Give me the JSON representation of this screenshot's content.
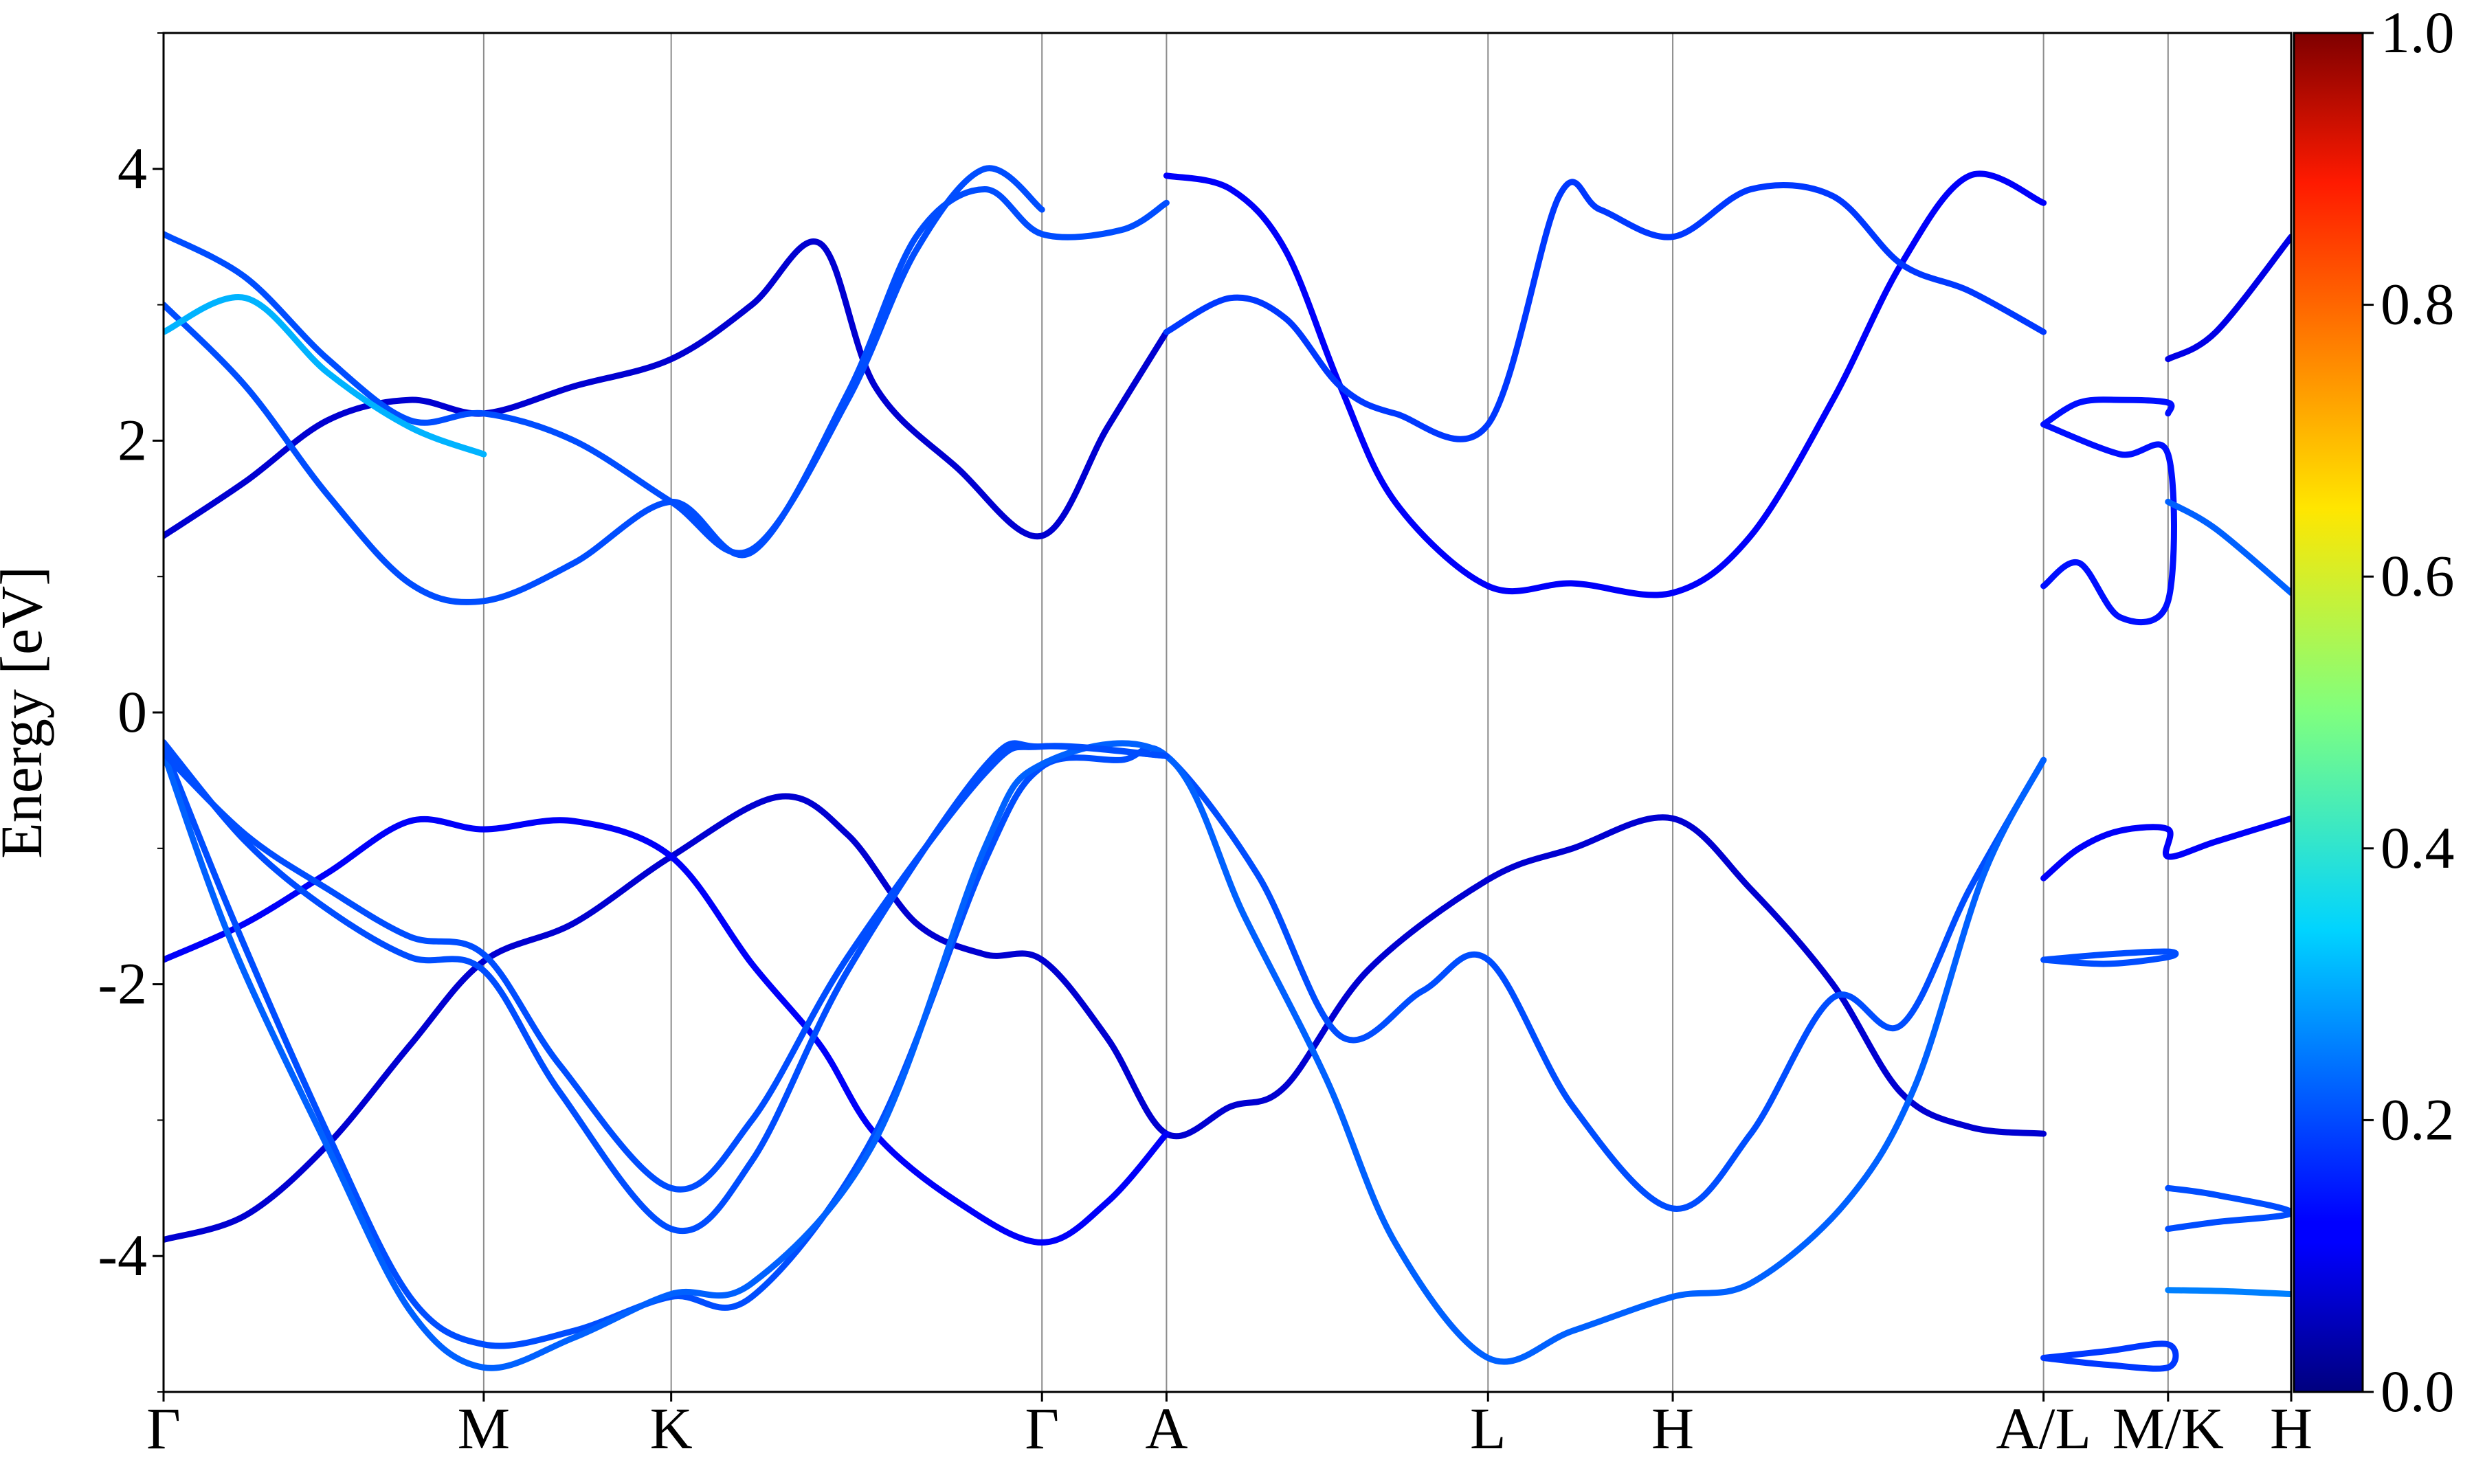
{
  "chart_data": {
    "type": "line",
    "title": "",
    "xlabel": "",
    "ylabel": "Energy [eV]",
    "ylim": [
      -5,
      5
    ],
    "xlim": [
      0,
      15.55
    ],
    "y_ticks": [
      {
        "value": -4,
        "label": "-4"
      },
      {
        "value": -2,
        "label": "-2"
      },
      {
        "value": 0,
        "label": "0"
      },
      {
        "value": 2,
        "label": "2"
      },
      {
        "value": 4,
        "label": "4"
      }
    ],
    "y_minor_ticks": [
      -5,
      -3,
      -1,
      1,
      3,
      5
    ],
    "k_points": [
      {
        "label": "Γ",
        "x": 0.0
      },
      {
        "label": "M",
        "x": 2.34
      },
      {
        "label": "K",
        "x": 3.71
      },
      {
        "label": "Γ",
        "x": 6.42
      },
      {
        "label": "A",
        "x": 7.33
      },
      {
        "label": "L",
        "x": 9.68
      },
      {
        "label": "H",
        "x": 11.03
      },
      {
        "label": "A/L",
        "x": 13.74
      },
      {
        "label": "M/K",
        "x": 14.65
      },
      {
        "label": "H",
        "x": 15.55
      }
    ],
    "colorbar": {
      "colormap": "jet",
      "range": [
        0.0,
        1.0
      ],
      "ticks": [
        {
          "value": 0.0,
          "label": "0.0"
        },
        {
          "value": 0.2,
          "label": "0.2"
        },
        {
          "value": 0.4,
          "label": "0.4"
        },
        {
          "value": 0.6,
          "label": "0.6"
        },
        {
          "value": 0.8,
          "label": "0.8"
        },
        {
          "value": 1.0,
          "label": "1.0"
        }
      ]
    },
    "grid": "vertical lines at high-symmetry k-points",
    "bands": [
      {
        "weight": 0.08,
        "points": [
          [
            0,
            -3.88
          ],
          [
            0.6,
            -3.7
          ],
          [
            1.2,
            -3.18
          ],
          [
            1.8,
            -2.45
          ],
          [
            2.34,
            -1.83
          ],
          [
            3.0,
            -1.55
          ],
          [
            3.71,
            -1.06
          ],
          [
            4.5,
            -0.62
          ],
          [
            5.0,
            -0.9
          ],
          [
            5.5,
            -1.55
          ],
          [
            6.0,
            -1.78
          ],
          [
            6.42,
            -1.82
          ],
          [
            6.9,
            -2.4
          ],
          [
            7.33,
            -3.1
          ],
          [
            7.8,
            -2.9
          ],
          [
            8.2,
            -2.75
          ],
          [
            8.8,
            -1.9
          ],
          [
            9.68,
            -1.23
          ],
          [
            10.3,
            -1.0
          ],
          [
            11.03,
            -0.78
          ],
          [
            11.6,
            -1.3
          ],
          [
            12.2,
            -2.0
          ],
          [
            12.7,
            -2.8
          ],
          [
            13.2,
            -3.05
          ],
          [
            13.74,
            -3.1
          ]
        ]
      },
      {
        "weight": 0.12,
        "points": [
          [
            0,
            -1.82
          ],
          [
            0.6,
            -1.55
          ],
          [
            1.2,
            -1.18
          ],
          [
            1.8,
            -0.8
          ],
          [
            2.34,
            -0.86
          ],
          [
            3.0,
            -0.8
          ],
          [
            3.71,
            -1.06
          ],
          [
            4.3,
            -1.85
          ],
          [
            4.8,
            -2.45
          ],
          [
            5.2,
            -3.1
          ],
          [
            5.8,
            -3.6
          ],
          [
            6.42,
            -3.9
          ],
          [
            6.9,
            -3.6
          ],
          [
            7.33,
            -3.1
          ]
        ]
      },
      {
        "weight": 0.2,
        "points": [
          [
            0,
            -0.25
          ],
          [
            0.5,
            -1.5
          ],
          [
            1.2,
            -3.1
          ],
          [
            1.8,
            -4.3
          ],
          [
            2.34,
            -4.65
          ],
          [
            3.0,
            -4.55
          ],
          [
            3.71,
            -4.3
          ],
          [
            4.3,
            -4.3
          ],
          [
            5.2,
            -3.1
          ],
          [
            6.0,
            -1.1
          ],
          [
            6.42,
            -0.4
          ],
          [
            7.0,
            -0.35
          ],
          [
            7.33,
            -0.32
          ],
          [
            8.0,
            -1.2
          ],
          [
            8.6,
            -2.38
          ],
          [
            9.2,
            -2.05
          ],
          [
            9.68,
            -1.82
          ],
          [
            10.3,
            -2.9
          ],
          [
            11.03,
            -3.65
          ],
          [
            11.6,
            -3.1
          ],
          [
            12.2,
            -2.1
          ],
          [
            12.7,
            -2.3
          ],
          [
            13.2,
            -1.3
          ],
          [
            13.74,
            -0.35
          ]
        ]
      },
      {
        "weight": 0.22,
        "points": [
          [
            0,
            -0.3
          ],
          [
            0.5,
            -1.7
          ],
          [
            1.2,
            -3.2
          ],
          [
            1.8,
            -4.4
          ],
          [
            2.34,
            -4.82
          ],
          [
            3.0,
            -4.6
          ],
          [
            3.71,
            -4.28
          ],
          [
            4.3,
            -4.2
          ],
          [
            5.2,
            -3.15
          ],
          [
            6.0,
            -1.0
          ],
          [
            6.42,
            -0.38
          ],
          [
            7.33,
            -0.32
          ],
          [
            7.9,
            -1.5
          ],
          [
            8.5,
            -2.7
          ],
          [
            9.0,
            -3.9
          ],
          [
            9.68,
            -4.75
          ],
          [
            10.3,
            -4.55
          ],
          [
            11.03,
            -4.3
          ],
          [
            11.6,
            -4.2
          ],
          [
            12.3,
            -3.6
          ],
          [
            12.8,
            -2.75
          ],
          [
            13.3,
            -1.2
          ],
          [
            13.74,
            -0.35
          ]
        ]
      },
      {
        "weight": 0.2,
        "points": [
          [
            0,
            -0.3
          ],
          [
            0.6,
            -0.9
          ],
          [
            1.2,
            -1.3
          ],
          [
            1.8,
            -1.65
          ],
          [
            2.34,
            -1.78
          ],
          [
            2.9,
            -2.6
          ],
          [
            3.71,
            -3.5
          ],
          [
            4.3,
            -3.0
          ],
          [
            5.0,
            -1.8
          ],
          [
            6.0,
            -0.45
          ],
          [
            6.42,
            -0.25
          ],
          [
            7.33,
            -0.32
          ]
        ]
      },
      {
        "weight": 0.2,
        "points": [
          [
            0,
            -0.22
          ],
          [
            0.6,
            -0.95
          ],
          [
            1.2,
            -1.45
          ],
          [
            1.8,
            -1.8
          ],
          [
            2.34,
            -1.9
          ],
          [
            2.9,
            -2.8
          ],
          [
            3.71,
            -3.8
          ],
          [
            4.3,
            -3.3
          ],
          [
            5.0,
            -1.9
          ],
          [
            6.0,
            -0.4
          ],
          [
            6.42,
            -0.25
          ],
          [
            7.33,
            -0.32
          ]
        ]
      },
      {
        "weight": 0.08,
        "points": [
          [
            0,
            1.3
          ],
          [
            0.6,
            1.7
          ],
          [
            1.2,
            2.15
          ],
          [
            1.8,
            2.3
          ],
          [
            2.34,
            2.2
          ],
          [
            3.0,
            2.4
          ],
          [
            3.71,
            2.6
          ],
          [
            4.3,
            3.0
          ],
          [
            4.8,
            3.45
          ],
          [
            5.2,
            2.4
          ],
          [
            5.8,
            1.8
          ],
          [
            6.42,
            1.3
          ],
          [
            6.9,
            2.1
          ],
          [
            7.33,
            2.8
          ]
        ]
      },
      {
        "weight": 0.2,
        "points": [
          [
            0,
            3.0
          ],
          [
            0.6,
            2.4
          ],
          [
            1.2,
            1.6
          ],
          [
            1.8,
            0.95
          ],
          [
            2.34,
            0.82
          ],
          [
            3.0,
            1.1
          ],
          [
            3.71,
            1.55
          ],
          [
            4.3,
            1.18
          ],
          [
            5.0,
            2.35
          ],
          [
            5.5,
            3.5
          ],
          [
            6.0,
            3.85
          ],
          [
            6.42,
            3.52
          ],
          [
            7.0,
            3.55
          ],
          [
            7.33,
            3.75
          ]
        ]
      },
      {
        "weight": 0.2,
        "points": [
          [
            0,
            3.52
          ],
          [
            0.6,
            3.2
          ],
          [
            1.2,
            2.6
          ],
          [
            1.8,
            2.15
          ],
          [
            2.34,
            2.2
          ],
          [
            3.0,
            2.0
          ],
          [
            3.71,
            1.55
          ],
          [
            4.3,
            1.2
          ],
          [
            5.0,
            2.3
          ],
          [
            5.5,
            3.4
          ],
          [
            6.0,
            4.0
          ],
          [
            6.42,
            3.7
          ]
        ]
      },
      {
        "weight": 0.3,
        "points": [
          [
            0,
            2.8
          ],
          [
            0.6,
            3.05
          ],
          [
            1.2,
            2.5
          ],
          [
            1.8,
            2.1
          ],
          [
            2.34,
            1.9
          ]
        ]
      },
      {
        "weight": 0.12,
        "points": [
          [
            7.33,
            3.95
          ],
          [
            7.8,
            3.85
          ],
          [
            8.2,
            3.4
          ],
          [
            8.6,
            2.4
          ],
          [
            9.0,
            1.55
          ],
          [
            9.68,
            0.93
          ],
          [
            10.3,
            0.95
          ],
          [
            11.03,
            0.88
          ],
          [
            11.6,
            1.3
          ],
          [
            12.2,
            2.3
          ],
          [
            12.7,
            3.3
          ],
          [
            13.2,
            3.95
          ],
          [
            13.74,
            3.75
          ]
        ]
      },
      {
        "weight": 0.18,
        "points": [
          [
            7.33,
            2.8
          ],
          [
            7.8,
            3.05
          ],
          [
            8.2,
            2.9
          ],
          [
            8.6,
            2.4
          ],
          [
            9.0,
            2.2
          ],
          [
            9.68,
            2.12
          ],
          [
            10.2,
            3.8
          ],
          [
            10.5,
            3.7
          ],
          [
            11.03,
            3.5
          ],
          [
            11.6,
            3.85
          ],
          [
            12.2,
            3.8
          ],
          [
            12.7,
            3.3
          ],
          [
            13.2,
            3.1
          ],
          [
            13.74,
            2.8
          ]
        ]
      },
      {
        "weight": 0.14,
        "points": [
          [
            13.74,
            2.12
          ],
          [
            14.0,
            2.28
          ],
          [
            14.3,
            2.3
          ],
          [
            14.65,
            2.28
          ],
          [
            14.65,
            2.2
          ]
        ]
      },
      {
        "weight": 0.14,
        "points": [
          [
            13.74,
            0.93
          ],
          [
            14.0,
            1.1
          ],
          [
            14.3,
            0.7
          ],
          [
            14.65,
            0.82
          ],
          [
            14.65,
            1.9
          ],
          [
            14.3,
            1.9
          ],
          [
            13.74,
            2.12
          ]
        ]
      },
      {
        "weight": 0.22,
        "points": [
          [
            14.65,
            1.55
          ],
          [
            15.0,
            1.35
          ],
          [
            15.55,
            0.88
          ]
        ]
      },
      {
        "weight": 0.1,
        "points": [
          [
            14.65,
            2.6
          ],
          [
            15.0,
            2.8
          ],
          [
            15.55,
            3.5
          ]
        ]
      },
      {
        "weight": 0.12,
        "points": [
          [
            13.74,
            -1.22
          ],
          [
            14.0,
            -1.0
          ],
          [
            14.3,
            -0.87
          ],
          [
            14.65,
            -0.86
          ],
          [
            14.65,
            -1.06
          ],
          [
            15.0,
            -0.95
          ],
          [
            15.55,
            -0.78
          ]
        ]
      },
      {
        "weight": 0.2,
        "points": [
          [
            13.74,
            -1.82
          ],
          [
            14.2,
            -1.78
          ],
          [
            14.65,
            -1.76
          ],
          [
            14.65,
            -1.8
          ],
          [
            14.2,
            -1.85
          ],
          [
            13.74,
            -1.82
          ]
        ]
      },
      {
        "weight": 0.2,
        "points": [
          [
            14.65,
            -3.5
          ],
          [
            15.0,
            -3.55
          ],
          [
            15.55,
            -3.68
          ],
          [
            15.0,
            -3.75
          ],
          [
            14.65,
            -3.8
          ]
        ]
      },
      {
        "weight": 0.25,
        "points": [
          [
            14.65,
            -4.25
          ],
          [
            15.1,
            -4.26
          ],
          [
            15.55,
            -4.28
          ]
        ]
      },
      {
        "weight": 0.18,
        "points": [
          [
            13.74,
            -4.75
          ],
          [
            14.2,
            -4.7
          ],
          [
            14.65,
            -4.65
          ],
          [
            14.65,
            -4.82
          ],
          [
            14.2,
            -4.8
          ],
          [
            13.74,
            -4.75
          ]
        ]
      }
    ]
  }
}
